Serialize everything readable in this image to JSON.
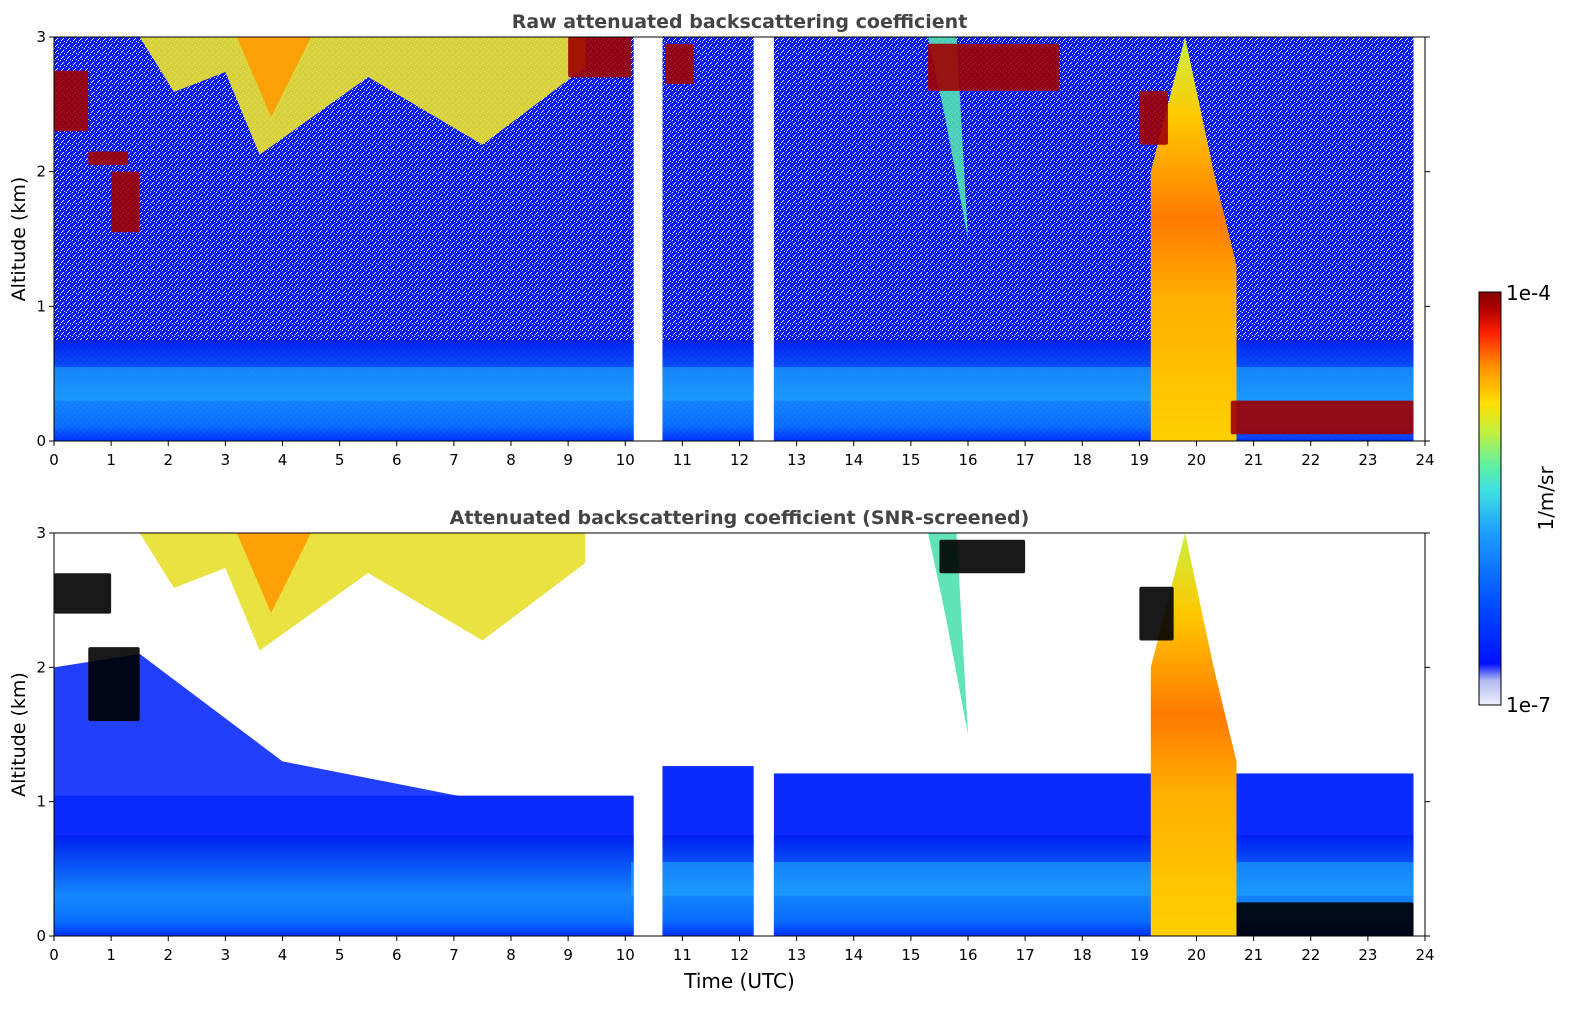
{
  "figure": {
    "colorbar_label": "1/m/sr",
    "colorbar_ticks": [
      "1e-4",
      "1e-7"
    ],
    "colormap": [
      "#f0f0ff",
      "#b0b8f0",
      "#0010ff",
      "#0050ff",
      "#1ea0ff",
      "#40e0e0",
      "#60f0a0",
      "#c0f040",
      "#ffe000",
      "#ff9000",
      "#ff2000",
      "#b00000",
      "#800000"
    ]
  },
  "chart_data": [
    {
      "type": "heatmap",
      "title": "Raw attenuated backscattering coefficient",
      "xlabel": "",
      "ylabel": "Altitude (km)",
      "xlim": [
        0,
        24
      ],
      "ylim": [
        0,
        3
      ],
      "x_ticks": [
        "0",
        "1",
        "2",
        "3",
        "4",
        "5",
        "6",
        "7",
        "8",
        "9",
        "10",
        "11",
        "12",
        "13",
        "14",
        "15",
        "16",
        "17",
        "18",
        "19",
        "20",
        "21",
        "22",
        "23",
        "24"
      ],
      "y_ticks": [
        "0",
        "1",
        "2",
        "3"
      ],
      "color_scale": "log",
      "color_range": [
        1e-07,
        0.0001
      ],
      "data_gaps_utc": [
        [
          10.15,
          10.65
        ],
        [
          12.25,
          12.6
        ]
      ],
      "cloud_layers": [
        {
          "x": [
            0.0,
            0.6
          ],
          "y": [
            2.3,
            2.75
          ],
          "level": "1e-4"
        },
        {
          "x": [
            0.6,
            1.3
          ],
          "y": [
            2.05,
            2.15
          ],
          "level": "1e-4"
        },
        {
          "x": [
            1.0,
            1.5
          ],
          "y": [
            1.55,
            2.0
          ],
          "level": "1e-4"
        },
        {
          "x": [
            9.0,
            10.1
          ],
          "y": [
            2.7,
            3.0
          ],
          "level": "1e-4"
        },
        {
          "x": [
            10.7,
            11.2
          ],
          "y": [
            2.65,
            2.95
          ],
          "level": "1e-4"
        },
        {
          "x": [
            15.3,
            17.6
          ],
          "y": [
            2.6,
            2.95
          ],
          "level": "1e-4"
        },
        {
          "x": [
            19.0,
            19.5
          ],
          "y": [
            2.2,
            2.6
          ],
          "level": "1e-4"
        },
        {
          "x": [
            20.6,
            23.8
          ],
          "y": [
            0.05,
            0.3
          ],
          "level": "1e-4"
        }
      ],
      "elevated_features": [
        {
          "x": [
            19.2,
            20.7
          ],
          "y": [
            0.0,
            3.0
          ],
          "level": "3e-5"
        },
        {
          "x": [
            1.5,
            9.3
          ],
          "y": [
            2.2,
            3.0
          ],
          "level": "1e-5"
        }
      ]
    },
    {
      "type": "heatmap",
      "title": "Attenuated backscattering coefficient (SNR-screened)",
      "xlabel": "Time (UTC)",
      "ylabel": "Altitude (km)",
      "xlim": [
        0,
        24
      ],
      "ylim": [
        0,
        3
      ],
      "x_ticks": [
        "0",
        "1",
        "2",
        "3",
        "4",
        "5",
        "6",
        "7",
        "8",
        "9",
        "10",
        "11",
        "12",
        "13",
        "14",
        "15",
        "16",
        "17",
        "18",
        "19",
        "20",
        "21",
        "22",
        "23",
        "24"
      ],
      "y_ticks": [
        "0",
        "1",
        "2",
        "3"
      ],
      "color_scale": "log",
      "color_range": [
        1e-07,
        0.0001
      ],
      "data_gaps_utc": [
        [
          10.15,
          10.65
        ],
        [
          12.25,
          12.6
        ]
      ],
      "cloud_layers": [
        {
          "x": [
            0.0,
            1.0
          ],
          "y": [
            2.4,
            2.7
          ],
          "level": "saturated"
        },
        {
          "x": [
            0.6,
            1.5
          ],
          "y": [
            1.6,
            2.15
          ],
          "level": "saturated"
        },
        {
          "x": [
            15.5,
            17.0
          ],
          "y": [
            2.7,
            2.95
          ],
          "level": "saturated"
        },
        {
          "x": [
            19.0,
            19.6
          ],
          "y": [
            2.2,
            2.6
          ],
          "level": "saturated"
        },
        {
          "x": [
            20.7,
            23.8
          ],
          "y": [
            0.0,
            0.25
          ],
          "level": "saturated"
        }
      ],
      "elevated_features": [
        {
          "x": [
            19.2,
            20.7
          ],
          "y": [
            0.0,
            3.0
          ],
          "level": "3e-5"
        },
        {
          "x": [
            1.5,
            9.3
          ],
          "y": [
            2.2,
            3.0
          ],
          "level": "1e-5"
        }
      ]
    }
  ]
}
